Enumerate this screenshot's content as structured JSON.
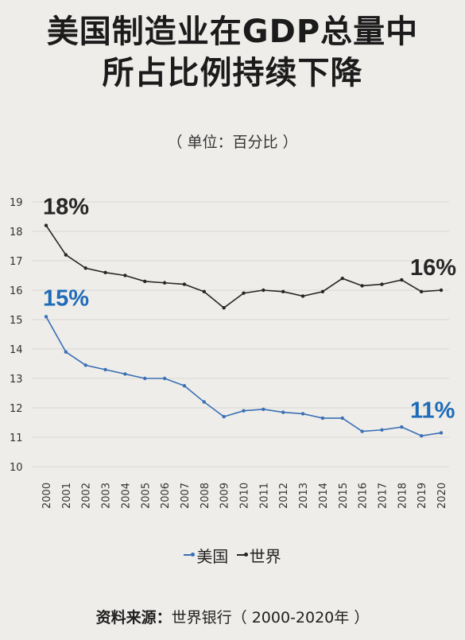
{
  "header": {
    "title_line1": "美国制造业在GDP总量中",
    "title_line2": "所占比例持续下降",
    "unit": "（ 单位：百分比 ）"
  },
  "legend": {
    "us": "美国",
    "world": "世界"
  },
  "source": {
    "label": "资料来源：",
    "text": "世界银行（ 2000-2020年 ）"
  },
  "colors": {
    "us": "#3a70b5",
    "world": "#262626",
    "grid": "#d9d6d1",
    "us_label": "#1e6bb8"
  },
  "chart_data": {
    "type": "line",
    "x": [
      "2000",
      "2001",
      "2002",
      "2003",
      "2004",
      "2005",
      "2006",
      "2007",
      "2008",
      "2009",
      "2010",
      "2011",
      "2012",
      "2013",
      "2014",
      "2015",
      "2016",
      "2017",
      "2018",
      "2019",
      "2020"
    ],
    "ylim": [
      10,
      19
    ],
    "yticks": [
      10,
      11,
      12,
      13,
      14,
      15,
      16,
      17,
      18,
      19
    ],
    "grid": true,
    "legend_position": "bottom",
    "series": [
      {
        "name": "世界",
        "values": [
          18.2,
          17.2,
          16.75,
          16.6,
          16.5,
          16.3,
          16.25,
          16.2,
          15.95,
          15.4,
          15.9,
          16.0,
          15.95,
          15.8,
          15.95,
          16.4,
          16.15,
          16.2,
          16.35,
          15.95,
          16.0
        ],
        "start_label": "18%",
        "end_label": "16%"
      },
      {
        "name": "美国",
        "values": [
          15.1,
          13.9,
          13.45,
          13.3,
          13.15,
          13.0,
          13.0,
          12.75,
          12.2,
          11.7,
          11.9,
          11.95,
          11.85,
          11.8,
          11.65,
          11.65,
          11.2,
          11.25,
          11.35,
          11.05,
          11.15
        ],
        "start_label": "15%",
        "end_label": "11%"
      }
    ]
  }
}
